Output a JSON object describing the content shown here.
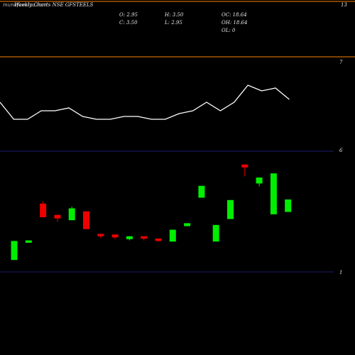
{
  "header": {
    "site": "munafasutra.com",
    "title": "Weekly Charts NSE GFSTEELS",
    "ohlc": {
      "o": "O: 2.95",
      "h": "H: 3.50",
      "c": "C: 3.50",
      "l": "L: 2.95",
      "oc": "OC: 18.64",
      "oh": "OH: 18.64",
      "ol": "OL: 0"
    },
    "top_right_value": "13"
  },
  "colors": {
    "background": "#000000",
    "orange_line": "#ff7f00",
    "blue_line": "#1c1c6e",
    "up": "#00ee00",
    "down": "#ee0000",
    "line": "#ffffff"
  },
  "chart_data": [
    {
      "type": "line",
      "panel": "upper",
      "y_tick_labels": [
        "7"
      ],
      "values": [
        74,
        68,
        68,
        71,
        71,
        72,
        69,
        68,
        68,
        69,
        69,
        68,
        68,
        70,
        71,
        74,
        71,
        74,
        80,
        78,
        79,
        75
      ]
    },
    {
      "type": "candlestick",
      "panel": "lower",
      "y_tick_labels": [
        "6",
        "1"
      ],
      "ylim": [
        0,
        20
      ],
      "candles": [
        {
          "o": 2.5,
          "h": 5.7,
          "l": 2.5,
          "c": 5.7
        },
        {
          "o": 5.4,
          "h": 5.8,
          "l": 5.4,
          "c": 5.8
        },
        {
          "o": 12.0,
          "h": 12.4,
          "l": 9.7,
          "c": 9.7
        },
        {
          "o": 10.1,
          "h": 10.1,
          "l": 8.9,
          "c": 9.5
        },
        {
          "o": 9.2,
          "h": 11.5,
          "l": 9.2,
          "c": 11.2
        },
        {
          "o": 10.7,
          "h": 10.7,
          "l": 7.7,
          "c": 7.7
        },
        {
          "o": 6.9,
          "h": 6.9,
          "l": 6.2,
          "c": 6.5
        },
        {
          "o": 6.8,
          "h": 6.8,
          "l": 6.0,
          "c": 6.3
        },
        {
          "o": 6.0,
          "h": 6.5,
          "l": 5.8,
          "c": 6.5
        },
        {
          "o": 6.5,
          "h": 6.5,
          "l": 5.8,
          "c": 6.1
        },
        {
          "o": 6.1,
          "h": 6.1,
          "l": 5.6,
          "c": 5.7
        },
        {
          "o": 5.6,
          "h": 7.6,
          "l": 5.6,
          "c": 7.6
        },
        {
          "o": 8.2,
          "h": 8.7,
          "l": 8.2,
          "c": 8.7
        },
        {
          "o": 13.0,
          "h": 15.0,
          "l": 13.0,
          "c": 15.0
        },
        {
          "o": 5.6,
          "h": 8.4,
          "l": 5.6,
          "c": 8.4
        },
        {
          "o": 9.4,
          "h": 12.6,
          "l": 9.4,
          "c": 12.6
        },
        {
          "o": 18.6,
          "h": 18.6,
          "l": 16.6,
          "c": 18.1
        },
        {
          "o": 15.4,
          "h": 16.4,
          "l": 14.9,
          "c": 16.4
        },
        {
          "o": 10.2,
          "h": 17.1,
          "l": 10.2,
          "c": 17.1
        },
        {
          "o": 10.6,
          "h": 12.7,
          "l": 10.6,
          "c": 12.7
        }
      ]
    }
  ]
}
